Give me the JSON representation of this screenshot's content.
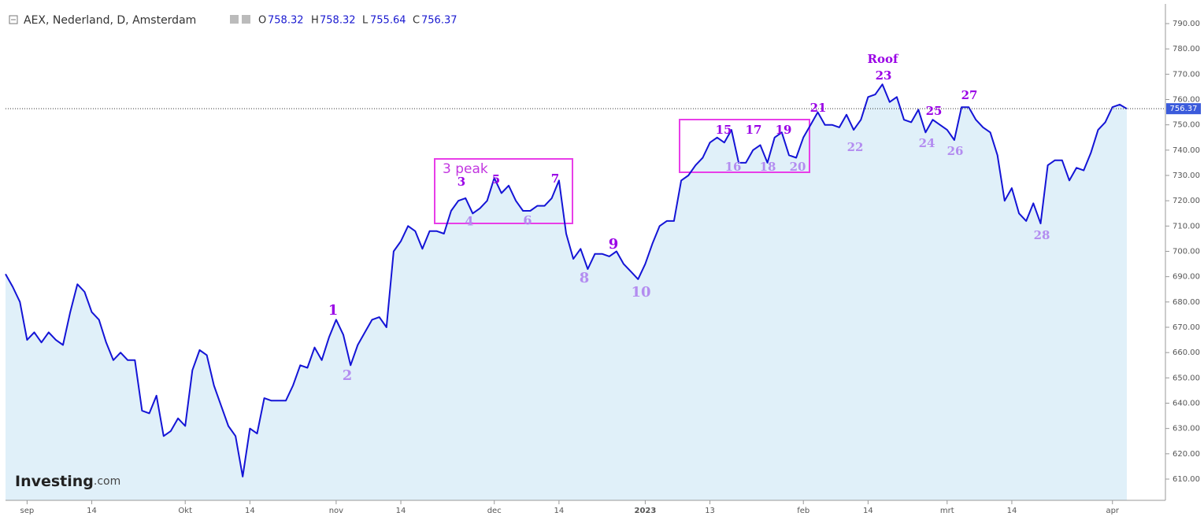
{
  "chart_data": {
    "type": "area",
    "header": {
      "title": "AEX, Nederland, D, Amsterdam",
      "open_label": "O",
      "open": "758.32",
      "high_label": "H",
      "high": "758.32",
      "low_label": "L",
      "low": "755.64",
      "close_label": "C",
      "close": "756.37"
    },
    "logo": "Investing",
    "logo_suffix": ".com",
    "categories": [
      null,
      null,
      null,
      "sep",
      null,
      null,
      null,
      null,
      null,
      null,
      null,
      null,
      "14",
      null,
      null,
      null,
      null,
      null,
      null,
      null,
      null,
      null,
      null,
      null,
      null,
      "Okt",
      null,
      null,
      null,
      null,
      null,
      null,
      null,
      null,
      "14",
      null,
      null,
      null,
      null,
      null,
      null,
      null,
      null,
      null,
      null,
      null,
      "nov",
      null,
      null,
      null,
      null,
      null,
      null,
      null,
      null,
      "14",
      null,
      null,
      null,
      null,
      null,
      null,
      null,
      null,
      null,
      null,
      null,
      null,
      "dec",
      null,
      null,
      null,
      null,
      null,
      null,
      null,
      null,
      "14",
      null,
      null,
      null,
      null,
      null,
      null,
      null,
      null,
      null,
      null,
      null,
      "2023",
      null,
      null,
      null,
      null,
      null,
      null,
      null,
      null,
      "13",
      null,
      null,
      null,
      null,
      null,
      null,
      null,
      null,
      null,
      null,
      null,
      null,
      "feb",
      null,
      null,
      null,
      null,
      null,
      null,
      null,
      null,
      "14",
      null,
      null,
      null,
      null,
      null,
      null,
      null,
      null,
      null,
      null,
      "mrt",
      null,
      null,
      null,
      null,
      null,
      null,
      null,
      null,
      "14",
      null,
      null,
      null,
      null,
      null,
      null,
      null,
      null,
      null,
      null,
      null,
      null,
      null,
      "apr",
      null,
      null
    ],
    "series": [
      {
        "name": "AEX",
        "color": "#1414d6",
        "fill": "#e0f0f9",
        "values": [
          691,
          686,
          680,
          665,
          668,
          664,
          668,
          665,
          663,
          676,
          687,
          684,
          676,
          673,
          664,
          657,
          660,
          657,
          657,
          637,
          636,
          643,
          627,
          629,
          634,
          631,
          653,
          661,
          659,
          647,
          639,
          631,
          627,
          611,
          630,
          628,
          642,
          641,
          641,
          641,
          647,
          655,
          654,
          662,
          657,
          666,
          673,
          667,
          655,
          663,
          668,
          673,
          674,
          670,
          700,
          704,
          710,
          708,
          701,
          708,
          708,
          707,
          716,
          720,
          721,
          715,
          717,
          720,
          729,
          723,
          726,
          720,
          716,
          716,
          718,
          718,
          721,
          728,
          707,
          697,
          701,
          693,
          699,
          699,
          698,
          700,
          695,
          692,
          689,
          695,
          703,
          710,
          712,
          712,
          728,
          730,
          734,
          737,
          743,
          745,
          743,
          748,
          735,
          735,
          740,
          742,
          735,
          745,
          747,
          738,
          737,
          745,
          750,
          755,
          750,
          750,
          749,
          754,
          748,
          752,
          761,
          762,
          766,
          759,
          761,
          752,
          751,
          756,
          747,
          752,
          750,
          748,
          744,
          757,
          757,
          752,
          749,
          747,
          738,
          720,
          725,
          715,
          712,
          719,
          711,
          734,
          736,
          736,
          728,
          733,
          732,
          739,
          748,
          751,
          757,
          758,
          756.37
        ]
      }
    ],
    "ylim": [
      610,
      790
    ],
    "yticks": [
      {
        "value": 610,
        "label": "610.00"
      },
      {
        "value": 620,
        "label": "620.00"
      },
      {
        "value": 630,
        "label": "630.00"
      },
      {
        "value": 640,
        "label": "640.00"
      },
      {
        "value": 650,
        "label": "650.00"
      },
      {
        "value": 660,
        "label": "660.00"
      },
      {
        "value": 670,
        "label": "670.00"
      },
      {
        "value": 680,
        "label": "680.00"
      },
      {
        "value": 690,
        "label": "690.00"
      },
      {
        "value": 700,
        "label": "700.00"
      },
      {
        "value": 710,
        "label": "710.00"
      },
      {
        "value": 720,
        "label": "720.00"
      },
      {
        "value": 730,
        "label": "730.00"
      },
      {
        "value": 740,
        "label": "740.00"
      },
      {
        "value": 750,
        "label": "750.00"
      },
      {
        "value": 760,
        "label": "760.00"
      },
      {
        "value": 770,
        "label": "770.00"
      },
      {
        "value": 780,
        "label": "780.00"
      },
      {
        "value": 790,
        "label": "790.00"
      }
    ],
    "annotations": [
      "1",
      "2",
      "3 peak",
      "3",
      "4",
      "5",
      "6",
      "7",
      "8",
      "9",
      "10",
      "15",
      "16",
      "17",
      "18",
      "19",
      "20",
      "21",
      "22",
      "Roof",
      "23",
      "24",
      "25",
      "26",
      "27",
      "28"
    ]
  }
}
